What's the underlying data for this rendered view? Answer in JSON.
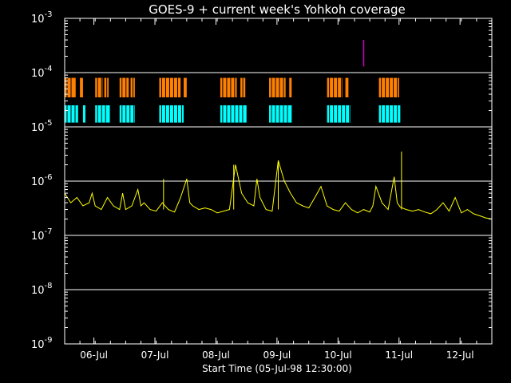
{
  "chart_data": {
    "type": "line",
    "title": "GOES-9 + current week's Yohkoh coverage",
    "xlabel": "Start Time (05-Jul-98 12:30:00)",
    "ylabel": "",
    "yscale": "log",
    "ylim": [
      1e-09,
      0.001
    ],
    "xlim_days_from_start": [
      0,
      7.0
    ],
    "grid": "horizontal lines at 1e-4, 1e-5, 1e-6, 1e-7, 1e-8",
    "y_tick_labels": [
      {
        "base": "10",
        "exp": "-3",
        "value": 0.001
      },
      {
        "base": "10",
        "exp": "-4",
        "value": 0.0001
      },
      {
        "base": "10",
        "exp": "-5",
        "value": 1e-05
      },
      {
        "base": "10",
        "exp": "-6",
        "value": 1e-06
      },
      {
        "base": "10",
        "exp": "-7",
        "value": 1e-07
      },
      {
        "base": "10",
        "exp": "-8",
        "value": 1e-08
      },
      {
        "base": "10",
        "exp": "-9",
        "value": 1e-09
      }
    ],
    "x_tick_labels": [
      "06-Jul",
      "07-Jul",
      "08-Jul",
      "09-Jul",
      "10-Jul",
      "11-Jul",
      "12-Jul"
    ],
    "x_tick_days": [
      0.479,
      1.479,
      2.479,
      3.479,
      4.479,
      5.479,
      6.479
    ],
    "series": [
      {
        "color": "#ffff00",
        "x_days": [
          0.0,
          0.1,
          0.2,
          0.3,
          0.4,
          0.45,
          0.5,
          0.6,
          0.7,
          0.8,
          0.9,
          0.95,
          1.0,
          1.1,
          1.2,
          1.25,
          1.3,
          1.4,
          1.5,
          1.6,
          1.7,
          1.8,
          1.9,
          2.0,
          2.05,
          2.1,
          2.2,
          2.3,
          2.4,
          2.5,
          2.6,
          2.7,
          2.8,
          2.9,
          3.0,
          3.1,
          3.15,
          3.2,
          3.3,
          3.4,
          3.5,
          3.6,
          3.7,
          3.8,
          3.9,
          4.0,
          4.1,
          4.2,
          4.3,
          4.4,
          4.5,
          4.6,
          4.7,
          4.8,
          4.9,
          5.0,
          5.05,
          5.1,
          5.2,
          5.3,
          5.4,
          5.45,
          5.5,
          5.6,
          5.7,
          5.8,
          5.9,
          6.0,
          6.1,
          6.2,
          6.3,
          6.4,
          6.5,
          6.6,
          6.7,
          6.8,
          6.9,
          7.0
        ],
        "y_flux": [
          6e-07,
          4e-07,
          5e-07,
          3.5e-07,
          4e-07,
          6e-07,
          3.5e-07,
          3e-07,
          5e-07,
          3.5e-07,
          3e-07,
          6e-07,
          3e-07,
          3.5e-07,
          7e-07,
          3.5e-07,
          4e-07,
          3e-07,
          2.8e-07,
          4e-07,
          3e-07,
          2.7e-07,
          5e-07,
          1.1e-06,
          4e-07,
          3.5e-07,
          3e-07,
          3.2e-07,
          3e-07,
          2.6e-07,
          2.8e-07,
          3e-07,
          2e-06,
          6e-07,
          4e-07,
          3.5e-07,
          1.1e-06,
          5e-07,
          3e-07,
          2.8e-07,
          2.4e-06,
          1e-06,
          6e-07,
          4e-07,
          3.5e-07,
          3.2e-07,
          5e-07,
          8e-07,
          3.5e-07,
          3e-07,
          2.8e-07,
          4e-07,
          3e-07,
          2.6e-07,
          3e-07,
          2.7e-07,
          3.5e-07,
          8e-07,
          4e-07,
          3e-07,
          1.2e-06,
          4e-07,
          3.3e-07,
          3e-07,
          2.8e-07,
          3e-07,
          2.7e-07,
          2.5e-07,
          3e-07,
          4e-07,
          2.8e-07,
          5e-07,
          2.6e-07,
          3e-07,
          2.5e-07,
          2.3e-07,
          2.1e-07,
          2e-07
        ]
      }
    ],
    "peaks": [
      {
        "day": 1.62,
        "flux": 1.1e-06
      },
      {
        "day": 2.77,
        "flux": 2e-06
      },
      {
        "day": 3.5,
        "flux": 2.4e-06
      },
      {
        "day": 5.52,
        "flux": 3.5e-06
      }
    ],
    "coverage_bands": {
      "orange": {
        "color": "#ff8000",
        "flux_top": 8e-05,
        "flux_bottom": 3.5e-05,
        "intervals_days": [
          [
            0.0,
            0.18
          ],
          [
            0.25,
            0.3
          ],
          [
            0.5,
            0.62
          ],
          [
            0.65,
            0.72
          ],
          [
            0.9,
            1.05
          ],
          [
            1.08,
            1.15
          ],
          [
            1.55,
            1.9
          ],
          [
            1.95,
            2.0
          ],
          [
            2.55,
            2.82
          ],
          [
            2.88,
            2.96
          ],
          [
            3.35,
            3.62
          ],
          [
            3.68,
            3.72
          ],
          [
            4.3,
            4.55
          ],
          [
            4.6,
            4.65
          ],
          [
            5.15,
            5.48
          ]
        ]
      },
      "cyan": {
        "color": "#00ffff",
        "flux_top": 2.5e-05,
        "flux_bottom": 1.2e-05,
        "intervals_days": [
          [
            0.0,
            0.22
          ],
          [
            0.3,
            0.34
          ],
          [
            0.5,
            0.74
          ],
          [
            0.9,
            1.15
          ],
          [
            1.55,
            1.95
          ],
          [
            2.55,
            2.98
          ],
          [
            3.35,
            3.72
          ],
          [
            4.3,
            4.68
          ],
          [
            5.15,
            5.5
          ]
        ]
      }
    },
    "marker": {
      "color": "#cc00cc",
      "day": 4.9,
      "flux_low": 0.00013,
      "flux_high": 0.0004
    }
  }
}
